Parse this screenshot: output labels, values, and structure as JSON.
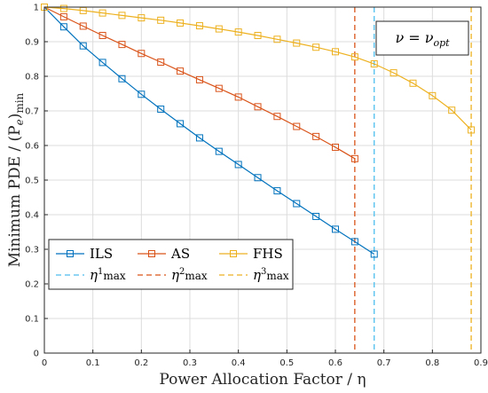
{
  "chart_data": {
    "type": "line",
    "xlabel": "Power Allocation Factor / η",
    "ylabel_main": "Minimum PDE / (P",
    "ylabel_sub": "e",
    "ylabel_close": ")",
    "ylabel_tail": "min",
    "xlim": [
      0,
      0.9
    ],
    "ylim": [
      0,
      1
    ],
    "x_ticks": [
      0,
      0.1,
      0.2,
      0.3,
      0.4,
      0.5,
      0.6,
      0.7,
      0.8,
      0.9
    ],
    "x_tick_labels": [
      "0",
      "0.1",
      "0.2",
      "0.3",
      "0.4",
      "0.5",
      "0.6",
      "0.7",
      "0.8",
      "0.9"
    ],
    "y_ticks": [
      0,
      0.1,
      0.2,
      0.3,
      0.4,
      0.5,
      0.6,
      0.7,
      0.8,
      0.9,
      1
    ],
    "y_tick_labels": [
      "0",
      "0.1",
      "0.2",
      "0.3",
      "0.4",
      "0.5",
      "0.6",
      "0.7",
      "0.8",
      "0.9",
      "1"
    ],
    "grid": true,
    "annotation": "ν = ν",
    "annotation_sub": "opt",
    "legend_position": "bottom-left",
    "series": [
      {
        "name": "ILS",
        "color": "#0072BD",
        "marker": "square",
        "x": [
          0,
          0.04,
          0.08,
          0.12,
          0.16,
          0.2,
          0.24,
          0.28,
          0.32,
          0.36,
          0.4,
          0.44,
          0.48,
          0.52,
          0.56,
          0.6,
          0.64,
          0.68
        ],
        "y": [
          1.0,
          0.943,
          0.888,
          0.84,
          0.793,
          0.748,
          0.705,
          0.663,
          0.622,
          0.583,
          0.545,
          0.507,
          0.469,
          0.432,
          0.395,
          0.358,
          0.322,
          0.286
        ]
      },
      {
        "name": "AS",
        "color": "#D95319",
        "marker": "square",
        "x": [
          0,
          0.04,
          0.08,
          0.12,
          0.16,
          0.2,
          0.24,
          0.28,
          0.32,
          0.36,
          0.4,
          0.44,
          0.48,
          0.52,
          0.56,
          0.6,
          0.64
        ],
        "y": [
          1.0,
          0.972,
          0.945,
          0.918,
          0.892,
          0.866,
          0.841,
          0.815,
          0.79,
          0.765,
          0.74,
          0.712,
          0.684,
          0.655,
          0.626,
          0.595,
          0.562
        ]
      },
      {
        "name": "FHS",
        "color": "#EDB120",
        "marker": "square",
        "x": [
          0,
          0.04,
          0.08,
          0.12,
          0.16,
          0.2,
          0.24,
          0.28,
          0.32,
          0.36,
          0.4,
          0.44,
          0.48,
          0.52,
          0.56,
          0.6,
          0.64,
          0.68,
          0.72,
          0.76,
          0.8,
          0.84,
          0.88
        ],
        "y": [
          1.0,
          0.996,
          0.99,
          0.983,
          0.976,
          0.969,
          0.962,
          0.954,
          0.946,
          0.937,
          0.928,
          0.918,
          0.907,
          0.896,
          0.884,
          0.871,
          0.856,
          0.836,
          0.81,
          0.78,
          0.744,
          0.702,
          0.645
        ]
      }
    ],
    "vlines": [
      {
        "label": "η",
        "sup": "1",
        "sub": "max",
        "x": 0.68,
        "color": "#4DBEEE"
      },
      {
        "label": "η",
        "sup": "2",
        "sub": "max",
        "x": 0.64,
        "color": "#D95319"
      },
      {
        "label": "η",
        "sup": "3",
        "sub": "max",
        "x": 0.88,
        "color": "#EDB120"
      }
    ]
  }
}
